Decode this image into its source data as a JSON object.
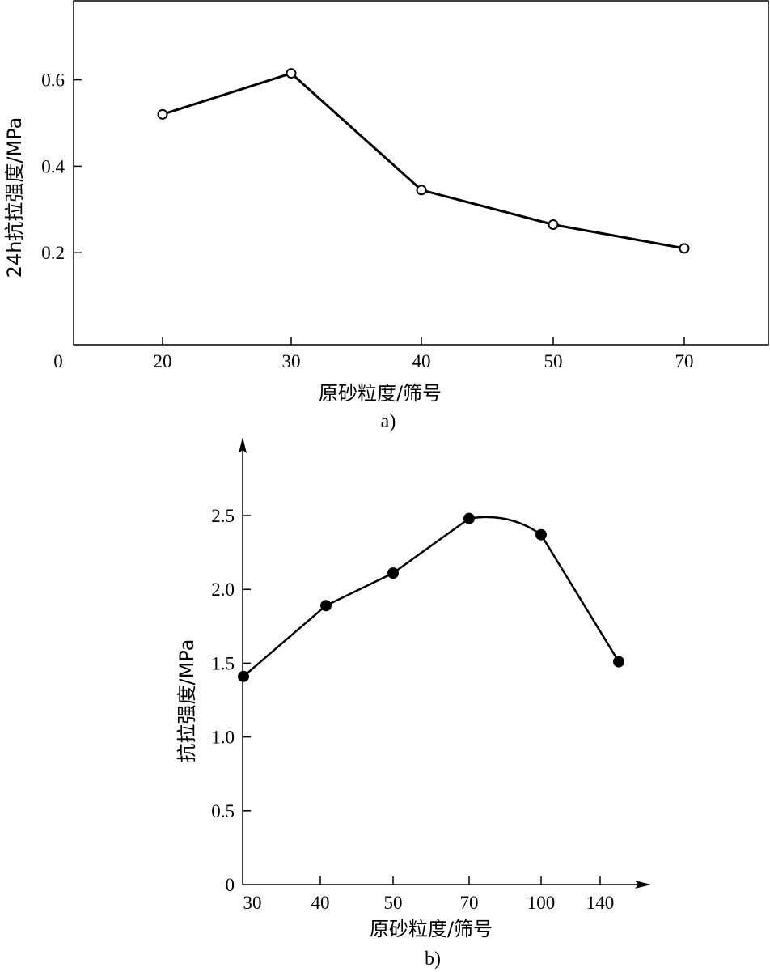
{
  "chart_data": [
    {
      "type": "line",
      "caption": "a)",
      "xlabel": "原砂粒度/筛号",
      "ylabel": "24h抗拉强度/MPa",
      "categories": [
        "20",
        "30",
        "40",
        "50",
        "70"
      ],
      "values": [
        0.52,
        0.615,
        0.345,
        0.265,
        0.21
      ],
      "origin_label": "0",
      "yticks": [
        0.2,
        0.4,
        0.6
      ],
      "ytick_labels": [
        "0.2",
        "0.4",
        "0.6"
      ],
      "marker": "open-circle",
      "ylim": [
        0,
        0.73
      ],
      "grid": false
    },
    {
      "type": "line",
      "caption": "b)",
      "xlabel": "原砂粒度/筛号",
      "ylabel": "抗拉强度/MPa",
      "categories": [
        "30",
        "40",
        "50",
        "70",
        "100",
        "140"
      ],
      "values": [
        1.41,
        1.89,
        2.11,
        2.48,
        2.37,
        1.51
      ],
      "yticks": [
        0,
        0.5,
        1.0,
        1.5,
        2.0,
        2.5
      ],
      "ytick_labels": [
        "0",
        "0.5",
        "1.0",
        "1.5",
        "2.0",
        "2.5"
      ],
      "marker": "filled-circle",
      "ylim": [
        0,
        3.0
      ],
      "grid": false
    }
  ]
}
